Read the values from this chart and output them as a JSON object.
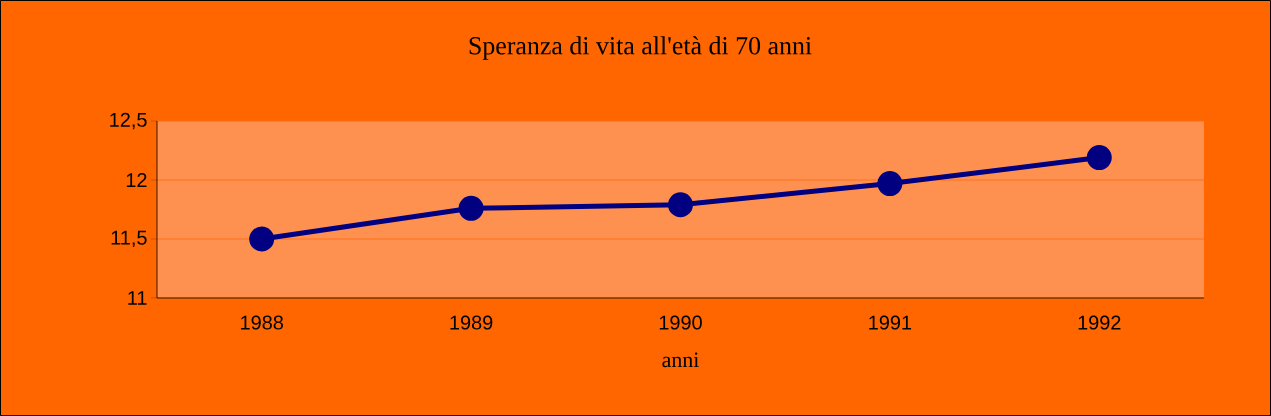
{
  "chart_data": {
    "type": "line",
    "title": "Speranza di vita all'età di 70 anni",
    "xlabel": "anni",
    "categories": [
      "1988",
      "1989",
      "1990",
      "1991",
      "1992"
    ],
    "series": [
      {
        "color": "#000080",
        "values": [
          11.5,
          11.76,
          11.79,
          11.97,
          12.19
        ]
      }
    ],
    "ylim": [
      11,
      12.5
    ],
    "yticks": [
      11,
      {
        "value": 11.5,
        "label": "11,5"
      },
      12,
      {
        "value": 12.5,
        "label": "12,5"
      }
    ],
    "grid": "y",
    "marker": "circle",
    "line_style": "solid"
  }
}
